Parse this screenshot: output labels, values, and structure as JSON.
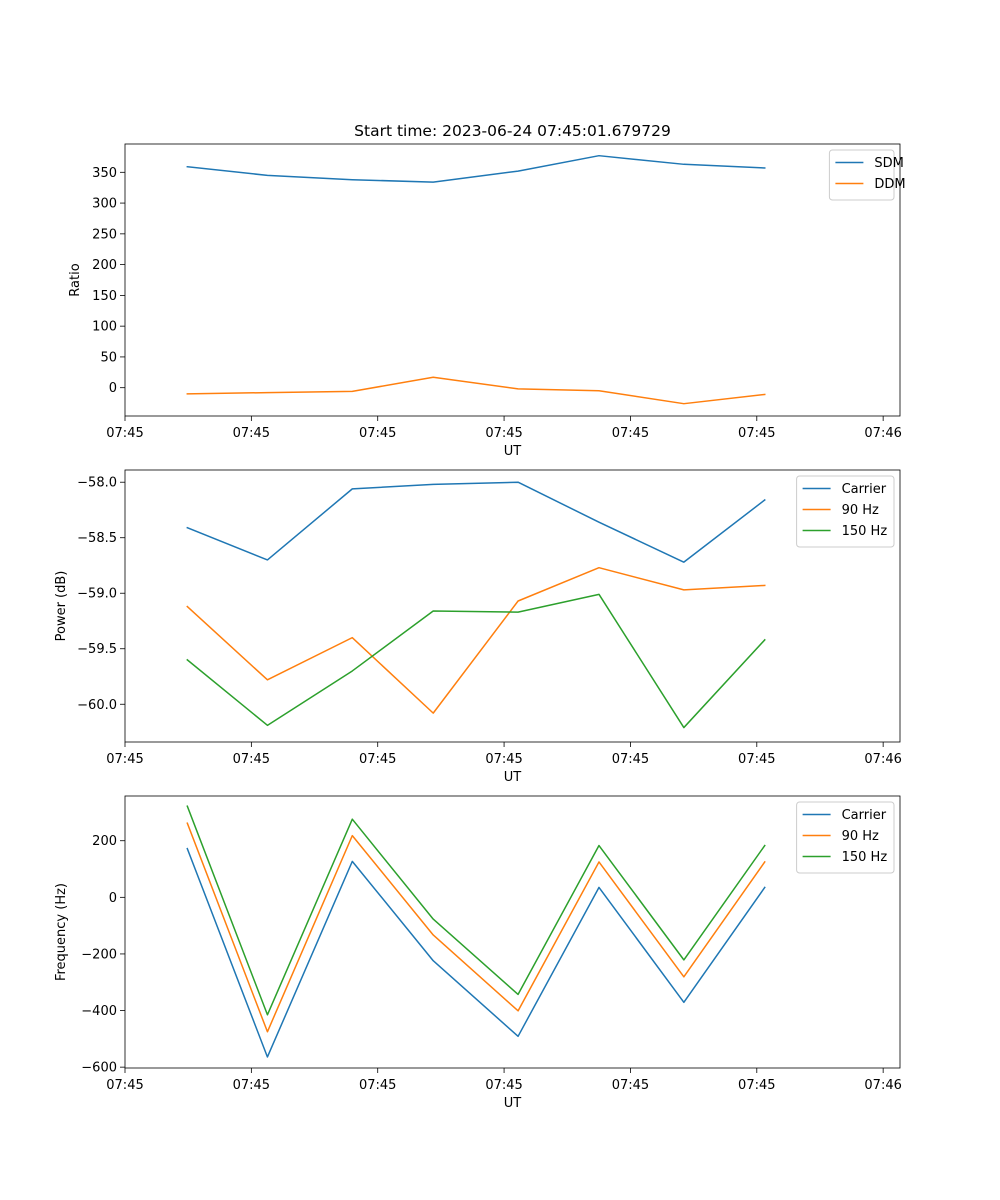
{
  "chart_data": [
    {
      "type": "line",
      "title": "Start time: 2023-06-24 07:45:01.679729",
      "xlabel": "UT",
      "ylabel": "Ratio",
      "xlim": [
        0,
        9.2
      ],
      "ylim": [
        -46,
        396
      ],
      "x_tick_positions": [
        0,
        1.5,
        3,
        4.5,
        6,
        7.5,
        9
      ],
      "x_tick_labels": [
        "07:45",
        "07:45",
        "07:45",
        "07:45",
        "07:45",
        "07:45",
        "07:46"
      ],
      "y_ticks": [
        0,
        50,
        100,
        150,
        200,
        250,
        300,
        350
      ],
      "y_tick_labels": [
        "0",
        "50",
        "100",
        "150",
        "200",
        "250",
        "300",
        "350"
      ],
      "x": [
        0.7397,
        1.6908,
        2.6983,
        3.6587,
        4.6662,
        5.6266,
        6.6341,
        7.5945
      ],
      "series": [
        {
          "name": "SDM",
          "color": "#1f77b4",
          "values": [
            359,
            345,
            338,
            334,
            352,
            377,
            363,
            357
          ]
        },
        {
          "name": "DDM",
          "color": "#ff7f0e",
          "values": [
            -10,
            -8,
            -6,
            17,
            -2,
            -5,
            -26,
            -11
          ]
        }
      ],
      "legend": "upper right",
      "grid": false
    },
    {
      "type": "line",
      "title": "",
      "xlabel": "UT",
      "ylabel": "Power (dB)",
      "xlim": [
        0,
        9.2
      ],
      "ylim": [
        -60.34,
        -57.89
      ],
      "x_tick_positions": [
        0,
        1.5,
        3,
        4.5,
        6,
        7.5,
        9
      ],
      "x_tick_labels": [
        "07:45",
        "07:45",
        "07:45",
        "07:45",
        "07:45",
        "07:45",
        "07:46"
      ],
      "y_ticks": [
        -60.0,
        -59.5,
        -59.0,
        -58.5,
        -58.0
      ],
      "y_tick_labels": [
        "−60.0",
        "−59.5",
        "−59.0",
        "−58.5",
        "−58.0"
      ],
      "x": [
        0.7397,
        1.6908,
        2.6983,
        3.6587,
        4.6662,
        5.6266,
        6.6341,
        7.5945
      ],
      "series": [
        {
          "name": "Carrier",
          "color": "#1f77b4",
          "values": [
            -58.41,
            -58.7,
            -58.06,
            -58.02,
            -58.0,
            -58.36,
            -58.72,
            -58.16
          ]
        },
        {
          "name": "90 Hz",
          "color": "#ff7f0e",
          "values": [
            -59.12,
            -59.78,
            -59.4,
            -60.08,
            -59.07,
            -58.77,
            -58.97,
            -58.93
          ]
        },
        {
          "name": "150 Hz",
          "color": "#2ca02c",
          "values": [
            -59.6,
            -60.19,
            -59.7,
            -59.16,
            -59.17,
            -59.01,
            -60.21,
            -59.42
          ]
        }
      ],
      "legend": "upper right",
      "grid": false
    },
    {
      "type": "line",
      "title": "",
      "xlabel": "UT",
      "ylabel": "Frequency (Hz)",
      "xlim": [
        0,
        9.2
      ],
      "ylim": [
        -603,
        358
      ],
      "x_tick_positions": [
        0,
        1.5,
        3,
        4.5,
        6,
        7.5,
        9
      ],
      "x_tick_labels": [
        "07:45",
        "07:45",
        "07:45",
        "07:45",
        "07:45",
        "07:45",
        "07:46"
      ],
      "y_ticks": [
        -600,
        -400,
        -200,
        0,
        200
      ],
      "y_tick_labels": [
        "−600",
        "−400",
        "−200",
        "0",
        "200"
      ],
      "x": [
        0.7397,
        1.6908,
        2.6983,
        3.6587,
        4.6662,
        5.6266,
        6.6341,
        7.5945
      ],
      "series": [
        {
          "name": "Carrier",
          "color": "#1f77b4",
          "values": [
            172,
            -564,
            127,
            -224,
            -491,
            35,
            -371,
            35
          ]
        },
        {
          "name": "90 Hz",
          "color": "#ff7f0e",
          "values": [
            262,
            -475,
            218,
            -133,
            -401,
            125,
            -281,
            125
          ]
        },
        {
          "name": "150 Hz",
          "color": "#2ca02c",
          "values": [
            322,
            -415,
            276,
            -77,
            -343,
            183,
            -221,
            183
          ]
        }
      ],
      "legend": "upper right",
      "grid": false
    }
  ]
}
